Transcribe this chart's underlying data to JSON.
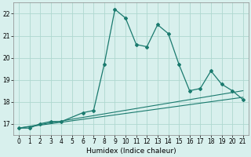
{
  "xlabel": "Humidex (Indice chaleur)",
  "x": [
    0,
    1,
    2,
    3,
    4,
    5,
    6,
    7,
    8,
    9,
    10,
    11,
    12,
    13,
    14,
    15,
    16,
    17,
    18,
    19,
    20,
    21
  ],
  "line1_x": [
    0,
    1,
    2,
    3,
    4,
    6,
    7,
    8,
    9,
    10,
    11,
    12,
    13,
    14,
    15,
    16,
    17,
    18,
    19,
    20,
    21
  ],
  "line1_y": [
    16.8,
    16.8,
    17.0,
    17.1,
    17.1,
    17.5,
    17.6,
    19.7,
    22.2,
    21.8,
    20.6,
    20.5,
    21.5,
    21.1,
    19.7,
    18.5,
    18.6,
    19.4,
    18.8,
    18.5,
    18.1
  ],
  "line2_x": [
    0,
    21
  ],
  "line2_y": [
    16.8,
    18.5
  ],
  "line3_x": [
    0,
    21
  ],
  "line3_y": [
    16.8,
    18.2
  ],
  "line_color": "#1a7a6e",
  "bg_color": "#d8f0ed",
  "grid_color": "#afd8d0",
  "ylim": [
    16.5,
    22.5
  ],
  "xlim": [
    -0.5,
    21.5
  ],
  "yticks": [
    17,
    18,
    19,
    20,
    21,
    22
  ],
  "xticks": [
    0,
    1,
    2,
    3,
    4,
    5,
    6,
    7,
    8,
    9,
    10,
    11,
    12,
    13,
    14,
    15,
    16,
    17,
    18,
    19,
    20,
    21
  ],
  "tick_fontsize": 5.5,
  "xlabel_fontsize": 6.5
}
